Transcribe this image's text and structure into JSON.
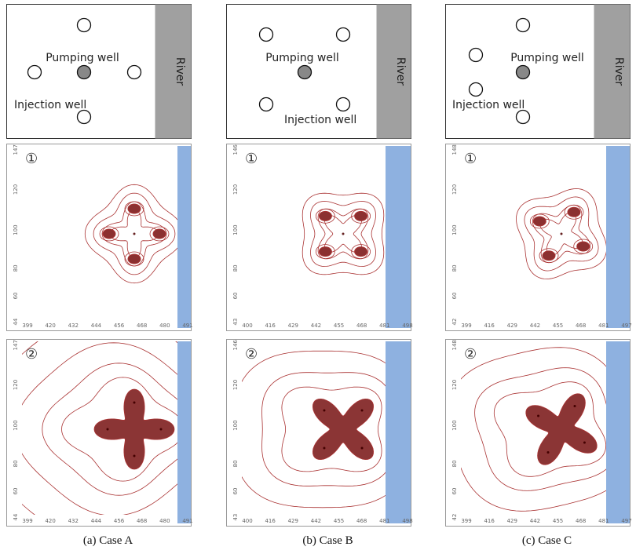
{
  "columns": [
    {
      "diagram": {
        "pumping_label": "Pumping well",
        "injection_label": "Injection well",
        "river_label": "River"
      },
      "panels": [
        {
          "marker": "①"
        },
        {
          "marker": "②"
        }
      ],
      "xticks": [
        "399",
        "420",
        "432",
        "444",
        "456",
        "468",
        "480",
        "491"
      ],
      "yticks": [
        "147",
        "120",
        "100",
        "80",
        "60",
        "44"
      ],
      "caption": "(a) Case A"
    },
    {
      "diagram": {
        "pumping_label": "Pumping well",
        "injection_label": "Injection well",
        "river_label": "River"
      },
      "panels": [
        {
          "marker": "①"
        },
        {
          "marker": "②"
        }
      ],
      "xticks": [
        "400",
        "416",
        "429",
        "442",
        "455",
        "468",
        "481",
        "498"
      ],
      "yticks": [
        "146",
        "120",
        "100",
        "80",
        "60",
        "43"
      ],
      "caption": "(b) Case B"
    },
    {
      "diagram": {
        "pumping_label": "Pumping well",
        "injection_label": "Injection well",
        "river_label": "River"
      },
      "panels": [
        {
          "marker": "①"
        },
        {
          "marker": "②"
        }
      ],
      "xticks": [
        "399",
        "416",
        "429",
        "442",
        "455",
        "468",
        "481",
        "497"
      ],
      "yticks": [
        "148",
        "120",
        "100",
        "80",
        "60",
        "42"
      ],
      "caption": "(c) Case C"
    }
  ]
}
